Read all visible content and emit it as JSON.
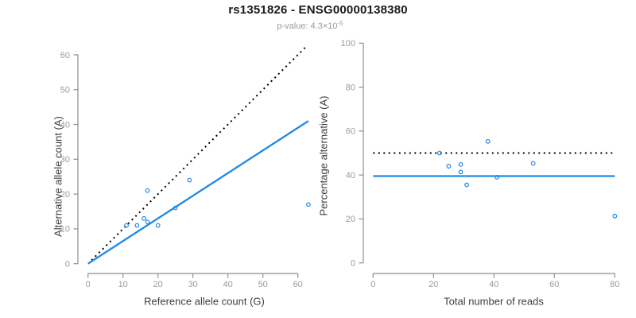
{
  "header": {
    "title": "rs1351826 - ENSG00000138380",
    "subtitle_text": "p-value: 4.3×10",
    "subtitle_exponent": "-5"
  },
  "colors": {
    "accent_blue": "#1E88E5",
    "reference_line": "#000000",
    "axis": "#8E8E8E",
    "tick_label": "#9B9B9B",
    "axis_title": "#3D3D3D",
    "title": "#1A1A1A",
    "subtitle": "#9B9B9B",
    "background": "#FFFFFF"
  },
  "chart_data": [
    {
      "id": "allele-count-scatter",
      "type": "scatter",
      "xlabel": "Reference allele count (G)",
      "ylabel": "Alternative allele count (A)",
      "xlim": [
        0,
        63
      ],
      "ylim": [
        0,
        63
      ],
      "xticks": [
        0,
        10,
        20,
        30,
        40,
        50,
        60
      ],
      "yticks": [
        0,
        10,
        20,
        30,
        40,
        50,
        60
      ],
      "grid": false,
      "legend": "none",
      "points": [
        [
          11,
          11
        ],
        [
          14,
          11
        ],
        [
          16,
          13
        ],
        [
          17,
          12
        ],
        [
          17,
          21
        ],
        [
          20,
          11
        ],
        [
          25,
          16
        ],
        [
          29,
          24
        ],
        [
          63,
          17
        ]
      ],
      "lines": [
        {
          "name": "identity-50pct-line",
          "style": "dotted",
          "from": [
            1,
            1
          ],
          "to": [
            62.5,
            62.5
          ]
        },
        {
          "name": "fitted-allelic-ratio-line",
          "style": "solid",
          "from": [
            0,
            0
          ],
          "to": [
            63,
            41
          ]
        }
      ]
    },
    {
      "id": "percentage-vs-reads-scatter",
      "type": "scatter",
      "xlabel": "Total number of reads",
      "ylabel": "Percentage alternative (A)",
      "xlim": [
        0,
        80
      ],
      "ylim": [
        0,
        100
      ],
      "xticks": [
        0,
        20,
        40,
        60,
        80
      ],
      "yticks": [
        0,
        20,
        40,
        60,
        80,
        100
      ],
      "grid": false,
      "legend": "none",
      "points": [
        [
          22,
          50
        ],
        [
          25,
          44
        ],
        [
          29,
          44.8
        ],
        [
          29,
          41.4
        ],
        [
          31,
          35.5
        ],
        [
          38,
          55.3
        ],
        [
          41,
          39
        ],
        [
          53,
          45.3
        ],
        [
          80,
          21.3
        ]
      ],
      "lines": [
        {
          "name": "expected-50pct-line",
          "style": "dotted",
          "from": [
            0,
            50
          ],
          "to": [
            80,
            50
          ]
        },
        {
          "name": "mean-percentage-line",
          "style": "solid",
          "from": [
            0,
            39.5
          ],
          "to": [
            80,
            39.5
          ]
        }
      ]
    }
  ]
}
